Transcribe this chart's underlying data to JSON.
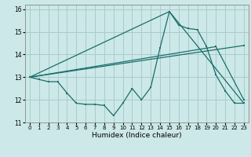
{
  "title": "",
  "xlabel": "Humidex (Indice chaleur)",
  "xlim": [
    -0.5,
    23.5
  ],
  "ylim": [
    11,
    16.2
  ],
  "yticks": [
    11,
    12,
    13,
    14,
    15,
    16
  ],
  "xticks": [
    0,
    1,
    2,
    3,
    4,
    5,
    6,
    7,
    8,
    9,
    10,
    11,
    12,
    13,
    14,
    15,
    16,
    17,
    18,
    19,
    20,
    21,
    22,
    23
  ],
  "bg_color": "#cce8e8",
  "grid_color": "#aacccc",
  "line_color": "#1a6e6a",
  "series": [
    {
      "x": [
        0,
        1,
        2,
        3,
        4,
        5,
        6,
        7,
        8,
        9,
        10,
        11,
        12,
        13,
        14,
        15,
        16,
        17,
        18,
        19,
        20,
        21,
        22,
        23
      ],
      "y": [
        13.0,
        12.9,
        12.8,
        12.8,
        12.3,
        11.85,
        11.8,
        11.8,
        11.75,
        11.3,
        11.85,
        12.5,
        12.0,
        12.55,
        14.3,
        15.9,
        15.3,
        15.15,
        15.1,
        14.35,
        13.1,
        12.4,
        11.85,
        11.85
      ]
    },
    {
      "x": [
        0,
        15,
        23
      ],
      "y": [
        13.0,
        15.9,
        11.85
      ]
    },
    {
      "x": [
        0,
        23
      ],
      "y": [
        13.0,
        14.4
      ]
    },
    {
      "x": [
        0,
        20,
        23
      ],
      "y": [
        13.0,
        14.35,
        12.0
      ]
    }
  ]
}
